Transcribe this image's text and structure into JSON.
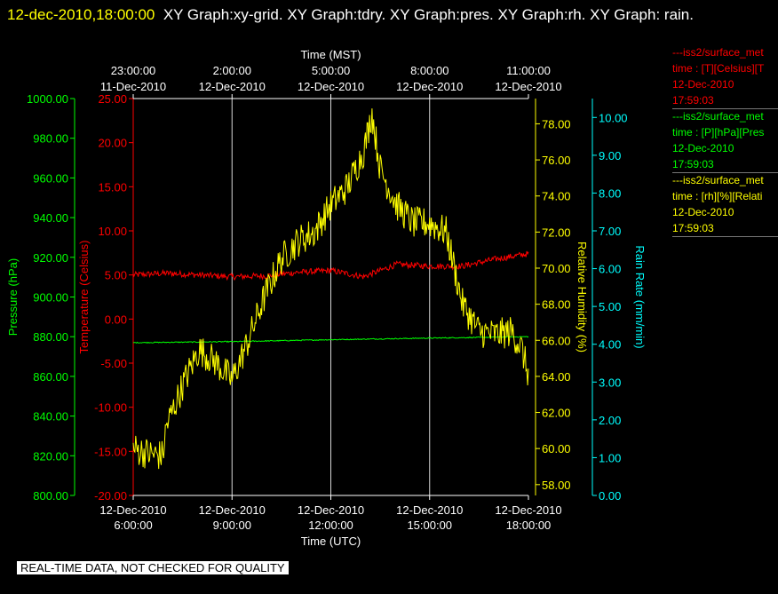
{
  "header": {
    "timestamp": "12-dec-2010,18:00:00",
    "graph_list": "XY Graph:xy-grid.  XY Graph:tdry.  XY Graph:pres.  XY Graph:rh.  XY Graph: rain."
  },
  "footer_note": "REAL-TIME DATA, NOT CHECKED FOR QUALITY",
  "legend": [
    {
      "name": "---iss2/surface_met",
      "field": "time : [T][Celsius][T",
      "date": "12-Dec-2010",
      "time": "17:59:03",
      "color": "#ff0000"
    },
    {
      "name": "---iss2/surface_met",
      "field": "time : [P][hPa][Pres",
      "date": "12-Dec-2010",
      "time": "17:59:03",
      "color": "#00ff00"
    },
    {
      "name": "---iss2/surface_met",
      "field": "time : [rh][%][Relati",
      "date": "12-Dec-2010",
      "time": "17:59:03",
      "color": "#ffff00"
    }
  ],
  "chart_data": {
    "type": "line",
    "x_axis_bottom": {
      "label": "Time (UTC)",
      "ticks": [
        {
          "l1": "12-Dec-2010",
          "l2": "6:00:00"
        },
        {
          "l1": "12-Dec-2010",
          "l2": "9:00:00"
        },
        {
          "l1": "12-Dec-2010",
          "l2": "12:00:00"
        },
        {
          "l1": "12-Dec-2010",
          "l2": "15:00:00"
        },
        {
          "l1": "12-Dec-2010",
          "l2": "18:00:00"
        }
      ],
      "xlim_hours_utc": [
        6,
        18
      ],
      "grid": true
    },
    "x_axis_top": {
      "label": "Time (MST)",
      "ticks": [
        {
          "l1": "23:00:00",
          "l2": "11-Dec-2010"
        },
        {
          "l1": "2:00:00",
          "l2": "12-Dec-2010"
        },
        {
          "l1": "5:00:00",
          "l2": "12-Dec-2010"
        },
        {
          "l1": "8:00:00",
          "l2": "12-Dec-2010"
        },
        {
          "l1": "11:00:00",
          "l2": "12-Dec-2010"
        }
      ]
    },
    "y_axes": [
      {
        "key": "pres",
        "label": "Pressure (hPa)",
        "color": "#00ff00",
        "range": [
          800,
          1000
        ],
        "ticks": [
          "800.00",
          "820.00",
          "840.00",
          "860.00",
          "880.00",
          "900.00",
          "920.00",
          "940.00",
          "960.00",
          "980.00",
          "1000.00"
        ]
      },
      {
        "key": "tdry",
        "label": "Temperature (Celsius)",
        "color": "#ff0000",
        "range": [
          -20,
          25
        ],
        "ticks": [
          "-20.00",
          "-15.00",
          "-10.00",
          "-5.00",
          "0.00",
          "5.00",
          "10.00",
          "15.00",
          "20.00",
          "25.00"
        ]
      },
      {
        "key": "rh",
        "label": "Relative Humidity (%)",
        "color": "#ffff00",
        "range": [
          57.4,
          79.4
        ],
        "ticks": [
          "58.00",
          "60.00",
          "62.00",
          "64.00",
          "66.00",
          "68.00",
          "70.00",
          "72.00",
          "74.00",
          "76.00",
          "78.00"
        ]
      },
      {
        "key": "rain",
        "label": "Rain Rate (mm/min)",
        "color": "#00ffff",
        "range": [
          0,
          10.5
        ],
        "ticks": [
          "0.00",
          "1.00",
          "2.00",
          "3.00",
          "4.00",
          "5.00",
          "6.00",
          "7.00",
          "8.00",
          "9.00",
          "10.00"
        ]
      }
    ],
    "series": [
      {
        "axis": "tdry",
        "color": "#ff0000",
        "x": [
          6,
          7,
          8,
          9,
          10,
          11,
          12,
          13,
          14,
          15,
          16,
          17,
          18
        ],
        "y": [
          5.0,
          5.2,
          5.0,
          4.8,
          4.9,
          5.3,
          5.5,
          4.8,
          6.2,
          6.0,
          6.0,
          6.8,
          7.4
        ]
      },
      {
        "axis": "pres",
        "color": "#00ff00",
        "x": [
          6,
          9,
          12,
          15,
          18
        ],
        "y": [
          877.0,
          877.5,
          878.5,
          879.3,
          880.0
        ]
      },
      {
        "axis": "rh",
        "color": "#ffff00",
        "x": [
          6,
          6.5,
          6.9,
          7.0,
          7.5,
          8.0,
          8.5,
          9.0,
          9.5,
          10.0,
          10.5,
          11.0,
          11.5,
          12.0,
          12.5,
          13.0,
          13.25,
          13.5,
          14.0,
          14.5,
          15.0,
          15.5,
          16.0,
          16.5,
          17.0,
          17.5,
          17.8,
          18.0
        ],
        "y": [
          60.0,
          59.7,
          59.6,
          61.2,
          63.5,
          65.5,
          64.8,
          63.8,
          66.0,
          68.5,
          70.5,
          71.5,
          72.0,
          73.5,
          74.5,
          76.5,
          78.6,
          75.5,
          73.5,
          72.5,
          72.5,
          72.0,
          68.0,
          66.5,
          66.3,
          66.5,
          65.5,
          64.1
        ]
      }
    ]
  }
}
